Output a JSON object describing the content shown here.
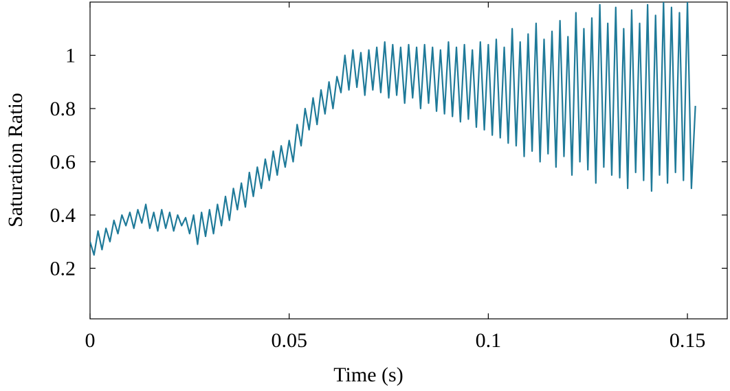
{
  "chart_data": {
    "type": "line",
    "xlabel": "Time (s)",
    "ylabel": "Saturation Ratio",
    "color": "#1f7a99",
    "x": [
      0,
      0.001,
      0.002,
      0.003,
      0.004,
      0.005,
      0.006,
      0.007,
      0.008,
      0.009,
      0.01,
      0.011,
      0.012,
      0.013,
      0.014,
      0.015,
      0.016,
      0.017,
      0.018,
      0.019,
      0.02,
      0.021,
      0.022,
      0.023,
      0.024,
      0.025,
      0.026,
      0.027,
      0.028,
      0.029,
      0.03,
      0.031,
      0.032,
      0.033,
      0.034,
      0.035,
      0.036,
      0.037,
      0.038,
      0.039,
      0.04,
      0.041,
      0.042,
      0.043,
      0.044,
      0.045,
      0.046,
      0.047,
      0.048,
      0.049,
      0.05,
      0.051,
      0.052,
      0.053,
      0.054,
      0.055,
      0.056,
      0.057,
      0.058,
      0.059,
      0.06,
      0.061,
      0.062,
      0.063,
      0.064,
      0.065,
      0.066,
      0.067,
      0.068,
      0.069,
      0.07,
      0.071,
      0.072,
      0.073,
      0.074,
      0.075,
      0.076,
      0.077,
      0.078,
      0.079,
      0.08,
      0.081,
      0.082,
      0.083,
      0.084,
      0.085,
      0.086,
      0.087,
      0.088,
      0.089,
      0.09,
      0.091,
      0.092,
      0.093,
      0.094,
      0.095,
      0.096,
      0.097,
      0.098,
      0.099,
      0.1,
      0.101,
      0.102,
      0.103,
      0.104,
      0.105,
      0.106,
      0.107,
      0.108,
      0.109,
      0.11,
      0.111,
      0.112,
      0.113,
      0.114,
      0.115,
      0.116,
      0.117,
      0.118,
      0.119,
      0.12,
      0.121,
      0.122,
      0.123,
      0.124,
      0.125,
      0.126,
      0.127,
      0.128,
      0.129,
      0.13,
      0.131,
      0.132,
      0.133,
      0.134,
      0.135,
      0.136,
      0.137,
      0.138,
      0.139,
      0.14,
      0.141,
      0.142,
      0.143,
      0.144,
      0.145,
      0.146,
      0.147,
      0.148,
      0.149,
      0.15,
      0.151,
      0.152
    ],
    "values": [
      0.3,
      0.25,
      0.34,
      0.27,
      0.35,
      0.3,
      0.38,
      0.33,
      0.4,
      0.36,
      0.41,
      0.35,
      0.42,
      0.37,
      0.44,
      0.35,
      0.41,
      0.34,
      0.42,
      0.35,
      0.41,
      0.34,
      0.4,
      0.36,
      0.39,
      0.33,
      0.4,
      0.29,
      0.41,
      0.32,
      0.42,
      0.33,
      0.44,
      0.36,
      0.47,
      0.38,
      0.5,
      0.42,
      0.52,
      0.43,
      0.56,
      0.47,
      0.58,
      0.5,
      0.61,
      0.53,
      0.64,
      0.55,
      0.66,
      0.58,
      0.68,
      0.6,
      0.74,
      0.66,
      0.8,
      0.72,
      0.84,
      0.74,
      0.87,
      0.78,
      0.9,
      0.8,
      0.92,
      0.86,
      1.0,
      0.87,
      1.02,
      0.88,
      1.01,
      0.85,
      1.02,
      0.87,
      1.03,
      0.86,
      1.05,
      0.84,
      1.04,
      0.85,
      1.03,
      0.82,
      1.04,
      0.84,
      1.03,
      0.8,
      1.04,
      0.82,
      1.03,
      0.79,
      1.02,
      0.78,
      1.05,
      0.77,
      1.03,
      0.75,
      1.04,
      0.76,
      1.02,
      0.73,
      1.05,
      0.72,
      1.04,
      0.7,
      1.06,
      0.69,
      1.03,
      0.67,
      1.1,
      0.66,
      1.05,
      0.62,
      1.08,
      0.64,
      1.12,
      0.6,
      1.06,
      0.63,
      1.09,
      0.58,
      1.13,
      0.62,
      1.07,
      0.55,
      1.16,
      0.6,
      1.1,
      0.57,
      1.14,
      0.52,
      1.19,
      0.58,
      1.12,
      0.55,
      1.18,
      0.54,
      1.1,
      0.5,
      1.17,
      0.56,
      1.12,
      0.53,
      1.19,
      0.49,
      1.15,
      0.55,
      1.2,
      0.52,
      1.18,
      0.56,
      1.16,
      0.53,
      1.2,
      0.5,
      0.81
    ],
    "xlim": [
      0,
      0.16
    ],
    "ylim": [
      0.01,
      1.2
    ],
    "xticks": [
      0,
      0.05,
      0.1,
      0.15
    ],
    "yticks": [
      0.2,
      0.4,
      0.6,
      0.8,
      1
    ],
    "grid": false
  }
}
